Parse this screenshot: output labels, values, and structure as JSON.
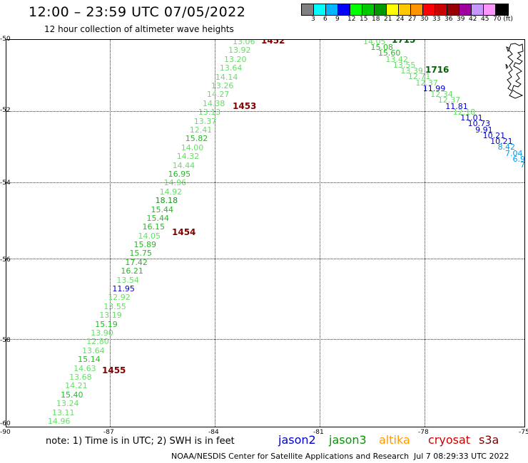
{
  "title": "12:00 – 23:59 UTC 07/05/2022",
  "subtitle": "12 hour collection of altimeter wave heights",
  "colorbar": {
    "colors": [
      "#808080",
      "#00ffff",
      "#00b4ff",
      "#0000ff",
      "#00ff00",
      "#00c800",
      "#009600",
      "#ffff00",
      "#ffc800",
      "#ff9600",
      "#ff0000",
      "#c80000",
      "#960000",
      "#a000a0",
      "#c896ff",
      "#ff96ff",
      "#000000"
    ],
    "labels": [
      "3",
      "6",
      "9",
      "12",
      "15",
      "18",
      "21",
      "24",
      "27",
      "30",
      "33",
      "36",
      "39",
      "42",
      "45",
      "70 (ft)"
    ]
  },
  "axes": {
    "y_labels": [
      "-50",
      "-52",
      "-54",
      "-56",
      "-58",
      "-60"
    ],
    "x_labels": [
      "-90",
      "-87",
      "-84",
      "-81",
      "-78",
      "-75"
    ]
  },
  "passes": [
    {
      "label": "1452",
      "color": "#800000"
    },
    {
      "label": "1453",
      "color": "#800000"
    },
    {
      "label": "1454",
      "color": "#800000"
    },
    {
      "label": "1455",
      "color": "#800000"
    },
    {
      "label": "1715",
      "color": "#006400"
    },
    {
      "label": "1716",
      "color": "#006400"
    }
  ],
  "track_west": [
    {
      "v": "13.06",
      "c": "#66dd66"
    },
    {
      "v": "13.92",
      "c": "#66dd66"
    },
    {
      "v": "13.20",
      "c": "#66dd66"
    },
    {
      "v": "13.64",
      "c": "#66dd66"
    },
    {
      "v": "14.14",
      "c": "#66dd66"
    },
    {
      "v": "13.26",
      "c": "#66dd66"
    },
    {
      "v": "14.27",
      "c": "#66dd66"
    },
    {
      "v": "14.38",
      "c": "#66dd66"
    },
    {
      "v": "13.13",
      "c": "#66dd66"
    },
    {
      "v": "13.37",
      "c": "#66dd66"
    },
    {
      "v": "12.41",
      "c": "#66dd66"
    },
    {
      "v": "15.82",
      "c": "#22bb22"
    },
    {
      "v": "14.00",
      "c": "#66dd66"
    },
    {
      "v": "14.32",
      "c": "#66dd66"
    },
    {
      "v": "14.44",
      "c": "#66dd66"
    },
    {
      "v": "16.95",
      "c": "#22bb22"
    },
    {
      "v": "14.96",
      "c": "#66dd66"
    },
    {
      "v": "14.92",
      "c": "#66dd66"
    },
    {
      "v": "18.18",
      "c": "#119911"
    },
    {
      "v": "15.44",
      "c": "#22bb22"
    },
    {
      "v": "15.44",
      "c": "#22bb22"
    },
    {
      "v": "16.15",
      "c": "#22bb22"
    },
    {
      "v": "14.05",
      "c": "#66dd66"
    },
    {
      "v": "15.89",
      "c": "#22bb22"
    },
    {
      "v": "15.75",
      "c": "#22bb22"
    },
    {
      "v": "17.42",
      "c": "#22bb22"
    },
    {
      "v": "16.21",
      "c": "#22bb22"
    },
    {
      "v": "13.54",
      "c": "#66dd66"
    },
    {
      "v": "11.95",
      "c": "#0000cc"
    },
    {
      "v": "12.92",
      "c": "#66dd66"
    },
    {
      "v": "13.55",
      "c": "#66dd66"
    },
    {
      "v": "13.19",
      "c": "#66dd66"
    },
    {
      "v": "15.19",
      "c": "#22bb22"
    },
    {
      "v": "13.90",
      "c": "#66dd66"
    },
    {
      "v": "12.80",
      "c": "#66dd66"
    },
    {
      "v": "13.64",
      "c": "#66dd66"
    },
    {
      "v": "15.14",
      "c": "#22bb22"
    },
    {
      "v": "14.63",
      "c": "#66dd66"
    },
    {
      "v": "13.68",
      "c": "#66dd66"
    },
    {
      "v": "14.21",
      "c": "#66dd66"
    },
    {
      "v": "15.40",
      "c": "#22bb22"
    },
    {
      "v": "13.24",
      "c": "#66dd66"
    },
    {
      "v": "13.11",
      "c": "#66dd66"
    },
    {
      "v": "14.96",
      "c": "#66dd66"
    }
  ],
  "track_east": [
    {
      "v": "14.05",
      "c": "#66dd66"
    },
    {
      "v": "15.08",
      "c": "#22bb22"
    },
    {
      "v": "15.60",
      "c": "#22bb22"
    },
    {
      "v": "13.42",
      "c": "#66dd66"
    },
    {
      "v": "13.55",
      "c": "#66dd66"
    },
    {
      "v": "13.39",
      "c": "#66dd66"
    },
    {
      "v": "12.71",
      "c": "#66dd66"
    },
    {
      "v": "12.37",
      "c": "#66dd66"
    },
    {
      "v": "11.99",
      "c": "#0000cc"
    },
    {
      "v": "12.34",
      "c": "#66dd66"
    },
    {
      "v": "12.37",
      "c": "#66dd66"
    },
    {
      "v": "11.81",
      "c": "#0000cc"
    },
    {
      "v": "12.18",
      "c": "#66dd66"
    },
    {
      "v": "11.01",
      "c": "#0000cc"
    },
    {
      "v": "10.73",
      "c": "#0000cc"
    },
    {
      "v": "9.91",
      "c": "#0000cc"
    },
    {
      "v": "10.21",
      "c": "#0000cc"
    },
    {
      "v": "10.21",
      "c": "#0000cc"
    },
    {
      "v": "8.42",
      "c": "#0099ee"
    },
    {
      "v": "7.04",
      "c": "#0099ee"
    },
    {
      "v": "6.90",
      "c": "#0099ee"
    },
    {
      "v": "7.",
      "c": "#0099ee"
    }
  ],
  "note": "note:  1) Time is in UTC;  2) SWH is in feet",
  "satellites": [
    {
      "name": "jason2",
      "color": "#0000cc"
    },
    {
      "name": "jason3",
      "color": "#009900"
    },
    {
      "name": "altika",
      "color": "#ff9900"
    },
    {
      "name": "cryosat",
      "color": "#cc0000"
    },
    {
      "name": "s3a",
      "color": "#800000"
    }
  ],
  "credit": "NOAA/NESDIS Center for Satellite Applications and Research",
  "datestamp": "Jul  7 08:29:33 UTC 2022"
}
